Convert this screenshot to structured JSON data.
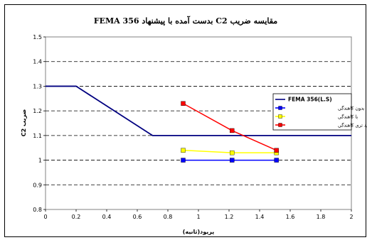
{
  "chart_data": {
    "type": "line",
    "title": "مقايسه ضريب C2 بدست آمده با پيشنهاد FEMA 356",
    "xlabel": "پريود(ثانيه)",
    "ylabel": "ضريب C2",
    "xlim": [
      0,
      2
    ],
    "ylim": [
      0.8,
      1.5
    ],
    "xticks": [
      "0",
      "0.2",
      "0.4",
      "0.6",
      "0.8",
      "1",
      "1.2",
      "1.4",
      "1.6",
      "1.8",
      "2"
    ],
    "yticks": [
      "0.8",
      "0.9",
      "1",
      "1.1",
      "1.2",
      "1.3",
      "1.4",
      "1.5"
    ],
    "grid": "horizontal dashed",
    "legend_position": "right",
    "series": [
      {
        "name": "FEMA 356(L.S)",
        "color": "#000080",
        "marker": "none",
        "x": [
          0,
          0.2,
          0.7,
          2.0
        ],
        "y": [
          1.3,
          1.3,
          1.1,
          1.1
        ]
      },
      {
        "name": "بدون کاهندگی",
        "color": "#0000ff",
        "marker": "square",
        "x": [
          0.9,
          1.22,
          1.51
        ],
        "y": [
          1.0,
          1.0,
          1.0
        ]
      },
      {
        "name": "با کاهندگی",
        "color": "#ffff00",
        "marker": "square",
        "x": [
          0.9,
          1.22,
          1.51
        ],
        "y": [
          1.04,
          1.03,
          1.03
        ]
      },
      {
        "name": "با شدید تری کاهندگی",
        "color": "#ff0000",
        "marker": "square",
        "x": [
          0.9,
          1.22,
          1.51
        ],
        "y": [
          1.23,
          1.12,
          1.04
        ]
      }
    ]
  }
}
